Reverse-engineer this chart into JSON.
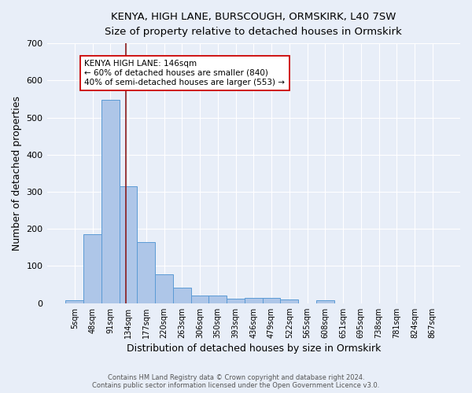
{
  "title_line1": "KENYA, HIGH LANE, BURSCOUGH, ORMSKIRK, L40 7SW",
  "title_line2": "Size of property relative to detached houses in Ormskirk",
  "xlabel": "Distribution of detached houses by size in Ormskirk",
  "ylabel": "Number of detached properties",
  "bar_labels": [
    "5sqm",
    "48sqm",
    "91sqm",
    "134sqm",
    "177sqm",
    "220sqm",
    "263sqm",
    "306sqm",
    "350sqm",
    "393sqm",
    "436sqm",
    "479sqm",
    "522sqm",
    "565sqm",
    "608sqm",
    "651sqm",
    "695sqm",
    "738sqm",
    "781sqm",
    "824sqm",
    "867sqm"
  ],
  "bar_values": [
    8,
    185,
    548,
    315,
    165,
    77,
    42,
    20,
    20,
    13,
    15,
    15,
    10,
    0,
    8,
    0,
    0,
    0,
    0,
    0,
    0
  ],
  "bar_color": "#aec6e8",
  "bar_edge_color": "#5b9bd5",
  "bg_color": "#e8eef8",
  "grid_color": "#ffffff",
  "vline_color": "#8b1a1a",
  "annotation_text": "KENYA HIGH LANE: 146sqm\n← 60% of detached houses are smaller (840)\n40% of semi-detached houses are larger (553) →",
  "annotation_box_color": "#ffffff",
  "annotation_box_edge": "#cc0000",
  "ylim": [
    0,
    700
  ],
  "yticks": [
    0,
    100,
    200,
    300,
    400,
    500,
    600,
    700
  ],
  "footnote": "Contains HM Land Registry data © Crown copyright and database right 2024.\nContains public sector information licensed under the Open Government Licence v3.0."
}
